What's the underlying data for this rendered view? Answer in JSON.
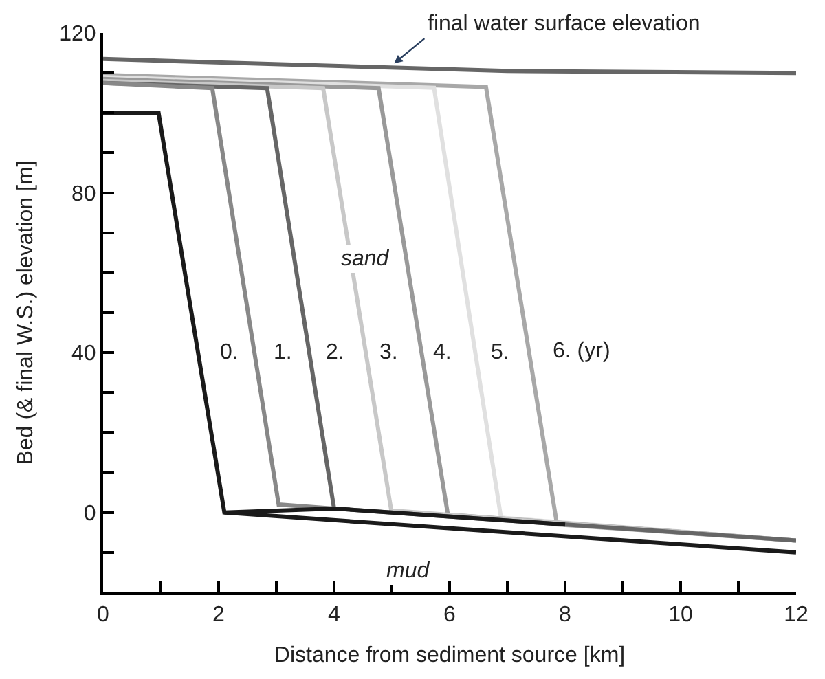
{
  "chart_data": {
    "type": "line",
    "xlabel": "Distance from sediment source [km]",
    "ylabel": "Bed (& final W.S.) elevation [m]",
    "xlim": [
      0,
      12
    ],
    "ylim": [
      -20,
      120
    ],
    "xticks": [
      0,
      {
        "value": 1,
        "label": null
      },
      2,
      {
        "value": 3,
        "label": null
      },
      4,
      {
        "value": 5,
        "label": null
      },
      6,
      {
        "value": 7,
        "label": null
      },
      8,
      {
        "value": 9,
        "label": null
      },
      10,
      {
        "value": 11,
        "label": null
      },
      12
    ],
    "yticks": [
      {
        "value": -20,
        "label": null
      },
      {
        "value": -10,
        "label": null
      },
      0,
      {
        "value": 10,
        "label": null
      },
      {
        "value": 20,
        "label": null
      },
      {
        "value": 30,
        "label": null
      },
      40,
      {
        "value": 50,
        "label": null
      },
      {
        "value": 60,
        "label": null
      },
      {
        "value": 70,
        "label": null
      },
      80,
      {
        "value": 90,
        "label": null
      },
      {
        "value": 100,
        "label": null
      },
      {
        "value": 110,
        "label": null
      },
      120
    ],
    "marker": "none",
    "line_style": "solid",
    "series": [
      {
        "color": "#666666",
        "x": [
          0,
          7,
          12
        ],
        "values": [
          113.5,
          110.5,
          110
        ]
      },
      {
        "color": "#a8a8a8",
        "x": [
          0,
          6.63,
          7.86,
          12
        ],
        "values": [
          109.5,
          106.5,
          -3,
          -7
        ]
      },
      {
        "color": "#e0e0e0",
        "x": [
          0,
          5.73,
          6.89,
          12
        ],
        "values": [
          109,
          106.3,
          -1.3,
          -7
        ]
      },
      {
        "color": "#999999",
        "x": [
          0,
          4.77,
          5.97,
          12
        ],
        "values": [
          108.5,
          106.2,
          -0.5,
          -7
        ]
      },
      {
        "color": "#c8c8c8",
        "x": [
          0,
          3.81,
          4.99,
          12
        ],
        "values": [
          108,
          106.2,
          0.5,
          -7
        ]
      },
      {
        "color": "#666666",
        "x": [
          0,
          2.84,
          4.0,
          12
        ],
        "values": [
          107.5,
          106.2,
          1,
          -7
        ]
      },
      {
        "color": "#888888",
        "x": [
          0,
          1.89,
          3.04,
          4.0
        ],
        "values": [
          107.5,
          106.2,
          2,
          1
        ]
      },
      {
        "color": "#1a1a1a",
        "x": [
          0,
          0.96,
          2.1,
          12
        ],
        "values": [
          100,
          100,
          0,
          -10
        ]
      },
      {
        "color": "#1a1a1a",
        "x": [
          2.1,
          4.0,
          8.0
        ],
        "values": [
          0,
          1,
          -3
        ]
      }
    ],
    "annotations": [
      {
        "text": "final water surface elevation",
        "x": 5.04,
        "y": 112.4
      },
      {
        "text": "sand",
        "x": 4.55,
        "y": 63.5
      },
      {
        "text": "mud",
        "x": 5.28,
        "y": -14.6
      },
      {
        "text": "0.",
        "x": 2.17,
        "y": 40
      },
      {
        "text": "1.",
        "x": 3.11,
        "y": 40
      },
      {
        "text": "2.",
        "x": 4.0,
        "y": 40
      },
      {
        "text": "3.",
        "x": 4.94,
        "y": 40
      },
      {
        "text": "4.",
        "x": 5.88,
        "y": 40
      },
      {
        "text": "5.",
        "x": 6.87,
        "y": 40
      },
      "6. (yr)"
    ]
  }
}
